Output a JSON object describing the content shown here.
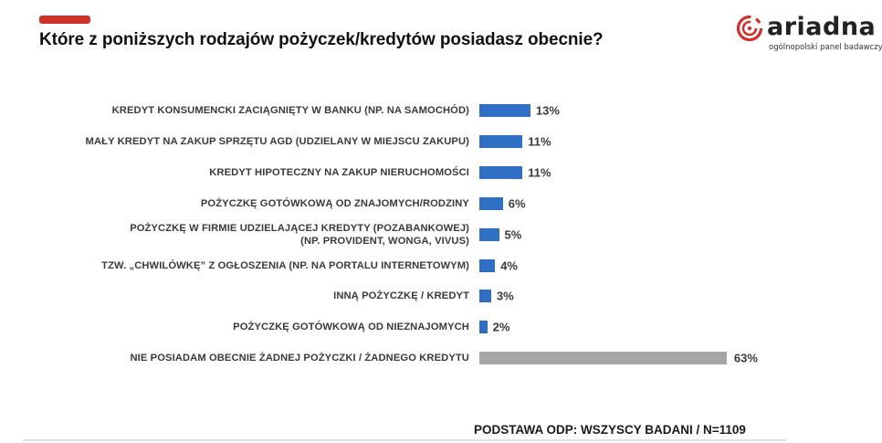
{
  "header": {
    "title": "Które z poniższych rodzajów pożyczek/kredytów posiadasz obecnie?",
    "accent_color": "#d0312d"
  },
  "logo": {
    "wordmark": "ariadna",
    "tagline": "ogólnopolski panel badawczy",
    "icon": "ariadna-spiral-icon",
    "color": "#d0312d"
  },
  "footer": {
    "base_note": "PODSTAWA ODP: WSZYSCY BADANI / N=1109"
  },
  "colors": {
    "primary_bar": "#2f6fc4",
    "none_bar": "#a6a6a6"
  },
  "chart_data": {
    "type": "bar",
    "orientation": "horizontal",
    "title": "Które z poniższych rodzajów pożyczek/kredytów posiadasz obecnie?",
    "xlabel": "",
    "ylabel": "",
    "grid": false,
    "legend": null,
    "unit": "%",
    "xlim": [
      0,
      63
    ],
    "categories": [
      "KREDYT KONSUMENCKI ZACIĄGNIĘTY W BANKU (NP. NA SAMOCHÓD)",
      "MAŁY KREDYT NA ZAKUP SPRZĘTU AGD (UDZIELANY W MIEJSCU ZAKUPU)",
      "KREDYT HIPOTECZNY NA ZAKUP NIERUCHOMOŚCI",
      "POŻYCZKĘ GOTÓWKOWĄ OD ZNAJOMYCH/RODZINY",
      "POŻYCZKĘ W FIRMIE UDZIELAJĄCEJ KREDYTY (POZABANKOWEJ) (NP. PROVIDENT, WONGA, VIVUS)",
      "TZW. „CHWILÓWKĘ” Z OGŁOSZENIA (NP. NA PORTALU INTERNETOWYM)",
      "INNĄ POŻYCZKĘ / KREDYT",
      "POŻYCZKĘ GOTÓWKOWĄ OD NIEZNAJOMYCH",
      "NIE POSIADAM OBECNIE ŻADNEJ POŻYCZKI / ŻADNEGO KREDYTU"
    ],
    "values": [
      13,
      11,
      11,
      6,
      5,
      4,
      3,
      2,
      63
    ],
    "annotations": [
      "PODSTAWA ODP: WSZYSCY BADANI / N=1109"
    ]
  },
  "rows": [
    {
      "label_lines": [
        "KREDYT KONSUMENCKI ZACIĄGNIĘTY W BANKU (NP. NA SAMOCHÓD)"
      ],
      "value": 13,
      "value_label": "13%",
      "kind": "primary"
    },
    {
      "label_lines": [
        "MAŁY KREDYT NA ZAKUP SPRZĘTU AGD (UDZIELANY W MIEJSCU ZAKUPU)"
      ],
      "value": 11,
      "value_label": "11%",
      "kind": "primary"
    },
    {
      "label_lines": [
        "KREDYT HIPOTECZNY NA ZAKUP NIERUCHOMOŚCI"
      ],
      "value": 11,
      "value_label": "11%",
      "kind": "primary"
    },
    {
      "label_lines": [
        "POŻYCZKĘ GOTÓWKOWĄ OD ZNAJOMYCH/RODZINY"
      ],
      "value": 6,
      "value_label": "6%",
      "kind": "primary"
    },
    {
      "label_lines": [
        "POŻYCZKĘ W FIRMIE UDZIELAJĄCEJ KREDYTY (POZABANKOWEJ)",
        "(NP. PROVIDENT, WONGA, VIVUS)"
      ],
      "value": 5,
      "value_label": "5%",
      "kind": "primary"
    },
    {
      "label_lines": [
        "TZW. „CHWILÓWKĘ” Z OGŁOSZENIA (NP. NA PORTALU INTERNETOWYM)"
      ],
      "value": 4,
      "value_label": "4%",
      "kind": "primary"
    },
    {
      "label_lines": [
        "INNĄ POŻYCZKĘ / KREDYT"
      ],
      "value": 3,
      "value_label": "3%",
      "kind": "primary"
    },
    {
      "label_lines": [
        "POŻYCZKĘ GOTÓWKOWĄ OD NIEZNAJOMYCH"
      ],
      "value": 2,
      "value_label": "2%",
      "kind": "primary"
    },
    {
      "label_lines": [
        "NIE POSIADAM OBECNIE ŻADNEJ POŻYCZKI / ŻADNEGO KREDYTU"
      ],
      "value": 63,
      "value_label": "63%",
      "kind": "none"
    }
  ]
}
